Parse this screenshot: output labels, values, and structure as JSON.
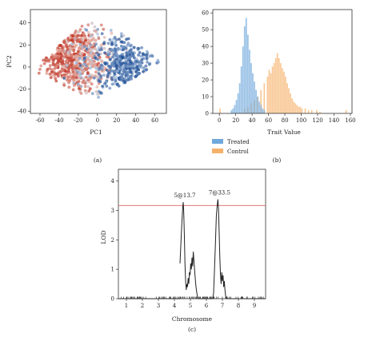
{
  "captions": {
    "a": "(a)",
    "b": "(b)",
    "c": "(c)"
  },
  "chart_data": [
    {
      "panel": "(a)",
      "type": "scatter",
      "xlabel": "PC1",
      "ylabel": "PC2",
      "xlim": [
        -70,
        72
      ],
      "ylim": [
        -42,
        52
      ],
      "xticks": [
        -60,
        -40,
        -20,
        0,
        20,
        40,
        60
      ],
      "yticks": [
        -40,
        -20,
        0,
        20,
        40
      ],
      "color_scale": [
        "#c0392b",
        "#e8b4a6",
        "#aac4e0",
        "#1f4e96"
      ],
      "clusters": [
        {
          "cx": -30,
          "cy": 10,
          "sx": 15,
          "sy": 15,
          "n": 420,
          "tone_mean": 0.12,
          "tone_sd": 0.12
        },
        {
          "cx": -5,
          "cy": 5,
          "sx": 14,
          "sy": 16,
          "n": 220,
          "tone_mean": 0.45,
          "tone_sd": 0.22
        },
        {
          "cx": 30,
          "cy": 2,
          "sx": 16,
          "sy": 14,
          "n": 360,
          "tone_mean": 0.88,
          "tone_sd": 0.1
        }
      ],
      "boundary": {
        "left": [
          -70,
          -2
        ],
        "top": [
          -3,
          47
        ],
        "right": [
          68,
          5
        ],
        "bottom": [
          -3,
          -30
        ]
      }
    },
    {
      "panel": "(b)",
      "type": "histogram",
      "xlabel": "Trait Value",
      "ylabel": "",
      "xlim": [
        -8,
        162
      ],
      "ylim": [
        0,
        62
      ],
      "xticks": [
        0,
        20,
        40,
        60,
        80,
        100,
        120,
        140,
        160
      ],
      "yticks": [
        0,
        10,
        20,
        30,
        40,
        50,
        60
      ],
      "bin_width": 2,
      "series": [
        {
          "name": "Treated",
          "color": "#6fa8dc",
          "bins": [
            {
              "x": 14,
              "count": 2
            },
            {
              "x": 16,
              "count": 3
            },
            {
              "x": 18,
              "count": 5
            },
            {
              "x": 20,
              "count": 8
            },
            {
              "x": 22,
              "count": 12
            },
            {
              "x": 24,
              "count": 18
            },
            {
              "x": 26,
              "count": 28
            },
            {
              "x": 28,
              "count": 40
            },
            {
              "x": 30,
              "count": 52
            },
            {
              "x": 32,
              "count": 57
            },
            {
              "x": 34,
              "count": 47
            },
            {
              "x": 36,
              "count": 38
            },
            {
              "x": 38,
              "count": 30
            },
            {
              "x": 40,
              "count": 24
            },
            {
              "x": 42,
              "count": 19
            },
            {
              "x": 44,
              "count": 14
            },
            {
              "x": 46,
              "count": 10
            },
            {
              "x": 48,
              "count": 7
            },
            {
              "x": 50,
              "count": 5
            },
            {
              "x": 52,
              "count": 3
            },
            {
              "x": 54,
              "count": 2
            }
          ]
        },
        {
          "name": "Control",
          "color": "#f6b26b",
          "bins": [
            {
              "x": 0,
              "count": 3
            },
            {
              "x": 30,
              "count": 3
            },
            {
              "x": 34,
              "count": 4
            },
            {
              "x": 38,
              "count": 6
            },
            {
              "x": 42,
              "count": 8
            },
            {
              "x": 46,
              "count": 10
            },
            {
              "x": 50,
              "count": 14
            },
            {
              "x": 54,
              "count": 18
            },
            {
              "x": 58,
              "count": 22
            },
            {
              "x": 60,
              "count": 26
            },
            {
              "x": 62,
              "count": 24
            },
            {
              "x": 64,
              "count": 28
            },
            {
              "x": 66,
              "count": 30
            },
            {
              "x": 68,
              "count": 33
            },
            {
              "x": 70,
              "count": 36
            },
            {
              "x": 72,
              "count": 33
            },
            {
              "x": 74,
              "count": 30
            },
            {
              "x": 76,
              "count": 27
            },
            {
              "x": 78,
              "count": 25
            },
            {
              "x": 80,
              "count": 22
            },
            {
              "x": 82,
              "count": 18
            },
            {
              "x": 84,
              "count": 15
            },
            {
              "x": 86,
              "count": 12
            },
            {
              "x": 88,
              "count": 9
            },
            {
              "x": 90,
              "count": 7
            },
            {
              "x": 92,
              "count": 6
            },
            {
              "x": 94,
              "count": 5
            },
            {
              "x": 96,
              "count": 4
            },
            {
              "x": 98,
              "count": 4
            },
            {
              "x": 100,
              "count": 3
            },
            {
              "x": 104,
              "count": 3
            },
            {
              "x": 108,
              "count": 2
            },
            {
              "x": 112,
              "count": 2
            },
            {
              "x": 118,
              "count": 2
            },
            {
              "x": 122,
              "count": 1
            },
            {
              "x": 154,
              "count": 2
            }
          ]
        }
      ],
      "legend": {
        "position": "bottom-left",
        "labels": [
          "Treated",
          "Control"
        ]
      }
    },
    {
      "panel": "(c)",
      "type": "line",
      "xlabel": "Chromosome",
      "ylabel": "LOD",
      "xlim": [
        0.5,
        9.7
      ],
      "ylim": [
        0,
        4.4
      ],
      "yticks": [
        0,
        1,
        2,
        3,
        4
      ],
      "xticks": [
        "1",
        "2",
        "3",
        "4",
        "5",
        "6",
        "7",
        "8",
        "9"
      ],
      "threshold": {
        "value": 3.17,
        "color": "#e06666"
      },
      "peaks": [
        {
          "label": "5@13.7",
          "x": 4.55,
          "value": 3.28
        },
        {
          "label": "7@33.5",
          "x": 6.72,
          "value": 3.38
        }
      ],
      "lod_profile": [
        [
          4.35,
          1.2
        ],
        [
          4.45,
          2.4
        ],
        [
          4.52,
          3.1
        ],
        [
          4.55,
          3.28
        ],
        [
          4.58,
          3.0
        ],
        [
          4.62,
          2.2
        ],
        [
          4.66,
          1.2
        ],
        [
          4.7,
          0.6
        ],
        [
          4.74,
          0.3
        ],
        [
          4.78,
          0.5
        ],
        [
          4.82,
          0.4
        ],
        [
          4.86,
          0.7
        ],
        [
          4.9,
          0.5
        ],
        [
          4.94,
          0.9
        ],
        [
          4.98,
          0.8
        ],
        [
          5.02,
          1.2
        ],
        [
          5.06,
          1.0
        ],
        [
          5.1,
          1.4
        ],
        [
          5.14,
          1.1
        ],
        [
          5.18,
          1.6
        ],
        [
          5.22,
          1.3
        ],
        [
          5.26,
          1.0
        ],
        [
          5.3,
          0.7
        ],
        [
          5.35,
          0.4
        ],
        [
          5.4,
          0.2
        ],
        [
          5.45,
          0.05
        ],
        [
          5.5,
          0.0
        ],
        [
          6.4,
          0.0
        ],
        [
          6.45,
          0.2
        ],
        [
          6.5,
          0.9
        ],
        [
          6.56,
          1.8
        ],
        [
          6.62,
          2.8
        ],
        [
          6.68,
          3.2
        ],
        [
          6.72,
          3.38
        ],
        [
          6.76,
          3.0
        ],
        [
          6.8,
          2.2
        ],
        [
          6.84,
          1.4
        ],
        [
          6.88,
          0.8
        ],
        [
          6.92,
          0.5
        ],
        [
          6.96,
          0.9
        ],
        [
          7.0,
          0.6
        ],
        [
          7.04,
          0.8
        ],
        [
          7.08,
          0.4
        ],
        [
          7.12,
          0.6
        ],
        [
          7.16,
          0.3
        ],
        [
          7.2,
          0.1
        ],
        [
          7.25,
          0.0
        ]
      ],
      "baseline_segments": [
        [
          0.5,
          4.35
        ],
        [
          5.5,
          6.4
        ],
        [
          7.25,
          9.7
        ]
      ]
    }
  ]
}
